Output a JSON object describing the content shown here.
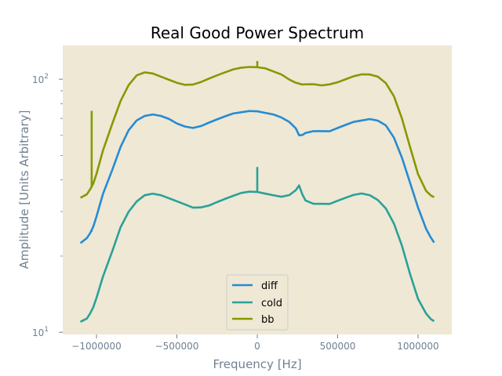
{
  "chart_data": {
    "type": "line",
    "title": "Real Good Power Spectrum",
    "xlabel": "Frequency [Hz]",
    "ylabel": "Amplitude [Units Arbitrary]",
    "xlim": [
      -1210000,
      1210000
    ],
    "ylim": [
      9.8,
      136
    ],
    "yscale": "log",
    "grid": false,
    "legend_position": "lower-center",
    "background_color": "#eee8d5",
    "text_color": "#708090",
    "xticks": [
      {
        "value": -1000000,
        "label": "−1000000"
      },
      {
        "value": -500000,
        "label": "−500000"
      },
      {
        "value": 0,
        "label": "0"
      },
      {
        "value": 500000,
        "label": "500000"
      },
      {
        "value": 1000000,
        "label": "1000000"
      }
    ],
    "yticks": [
      {
        "value": 10,
        "base": "10",
        "exp": "1"
      },
      {
        "value": 100,
        "base": "10",
        "exp": "2"
      }
    ],
    "x": [
      -1100000,
      -1060000,
      -1040000,
      -1020000,
      -1000000,
      -960000,
      -900000,
      -850000,
      -800000,
      -750000,
      -700000,
      -650000,
      -600000,
      -550000,
      -500000,
      -450000,
      -400000,
      -350000,
      -300000,
      -250000,
      -200000,
      -150000,
      -100000,
      -50000,
      0,
      50000,
      100000,
      150000,
      200000,
      240000,
      260000,
      280000,
      300000,
      350000,
      400000,
      450000,
      500000,
      550000,
      600000,
      650000,
      700000,
      750000,
      800000,
      850000,
      900000,
      950000,
      1000000,
      1050000,
      1080000,
      1100000
    ],
    "series": [
      {
        "name": "diff",
        "color": "#268bd2",
        "values": [
          22.5,
          23.5,
          24.5,
          26,
          28.5,
          35,
          44,
          54,
          63,
          69,
          72,
          73,
          72,
          70,
          67,
          65,
          64,
          65,
          67,
          69,
          71,
          73,
          74,
          75,
          75,
          74,
          73,
          71,
          68,
          64,
          60,
          60,
          61,
          62,
          62,
          62,
          64,
          66,
          68,
          69,
          70,
          69,
          66,
          59,
          49,
          39,
          31,
          25.5,
          23.5,
          22.5
        ],
        "spikes": [
          {
            "x": -1030000,
            "y": 25
          }
        ]
      },
      {
        "name": "cold",
        "color": "#2aa198",
        "values": [
          11,
          11.3,
          11.8,
          12.5,
          13.6,
          16.5,
          21,
          26,
          30,
          33,
          35,
          35.5,
          35,
          34,
          33,
          32,
          31,
          31,
          31.5,
          32.5,
          33.5,
          34.5,
          35.5,
          36,
          36,
          35.5,
          35,
          34.5,
          35,
          36.5,
          38,
          35,
          33,
          32,
          32,
          32,
          33,
          34,
          35,
          35.5,
          35,
          33.5,
          31,
          27,
          22,
          17,
          13.5,
          11.8,
          11.2,
          11
        ],
        "spikes": [
          {
            "x": 0,
            "y": 45
          }
        ]
      },
      {
        "name": "bb",
        "color": "#859900",
        "values": [
          34,
          35,
          36.5,
          38.5,
          42,
          52,
          67,
          82,
          95,
          104,
          107,
          106,
          103,
          100,
          97,
          95,
          95,
          97,
          100,
          103,
          106,
          109,
          111,
          112,
          112,
          111,
          108,
          105,
          100,
          97,
          96,
          95,
          95,
          95,
          94,
          95,
          97,
          100,
          103,
          105,
          105,
          103,
          97,
          86,
          70,
          54,
          42,
          36,
          34.5,
          34
        ],
        "spikes": [
          {
            "x": -1030000,
            "y": 75
          },
          {
            "x": 0,
            "y": 118
          }
        ]
      }
    ]
  }
}
